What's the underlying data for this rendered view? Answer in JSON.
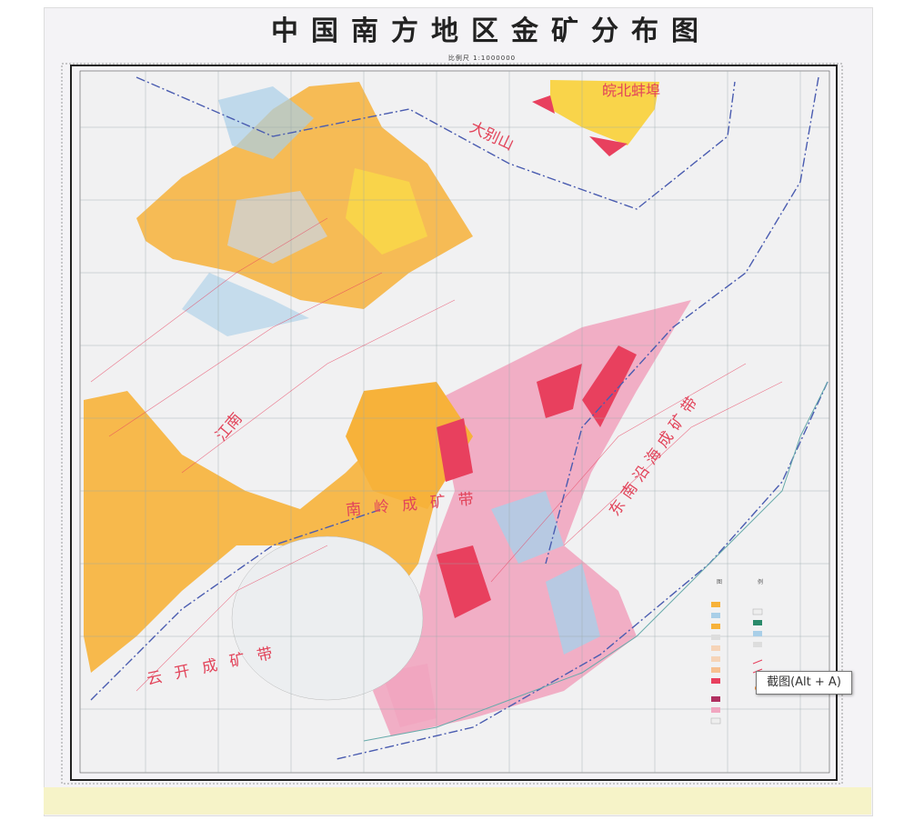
{
  "map": {
    "title": "中国南方地区金矿分布图",
    "scale": "比例尺 1:1000000",
    "region_labels": [
      "皖北蚌埠",
      "大别山",
      "江南",
      "南岭成矿带",
      "东南沿海成矿带",
      "云开成矿带"
    ],
    "colors": {
      "orange": "#f7b23a",
      "yellow": "#f9d44a",
      "blue": "#a9cfe8",
      "pink": "#f1a6c0",
      "red": "#e8405e",
      "paper": "#f4f3f6",
      "boundary": "#4a5cb0"
    }
  },
  "legend": {
    "title_left": "图",
    "title_right": "例"
  },
  "tooltip": {
    "text": "截图(Alt + A)"
  }
}
